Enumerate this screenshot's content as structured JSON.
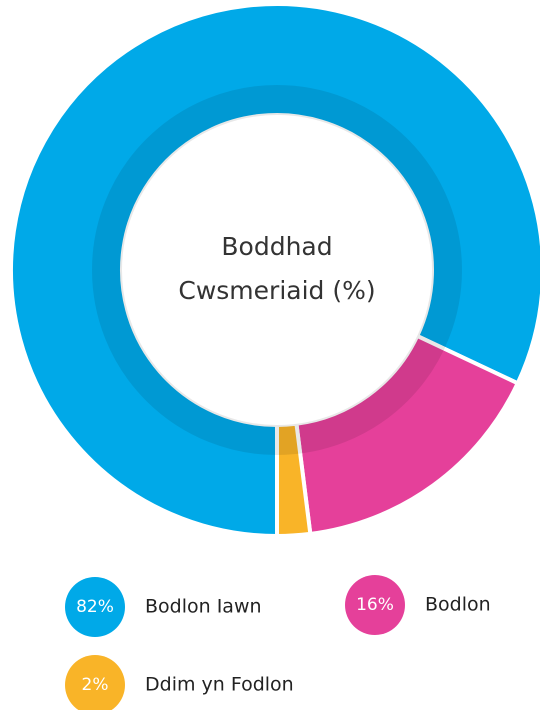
{
  "chart_data": {
    "type": "donut",
    "title_lines": [
      "Boddhad",
      "Cwsmeriaid (%)"
    ],
    "categories": [
      "Bodlon Iawn",
      "Bodlon",
      "Ddim yn Fodlon"
    ],
    "values": [
      82,
      16,
      2
    ],
    "value_labels": [
      "82%",
      "16%",
      "2%"
    ],
    "colors": [
      "#00a9e8",
      "#e5409a",
      "#f9b428"
    ]
  }
}
